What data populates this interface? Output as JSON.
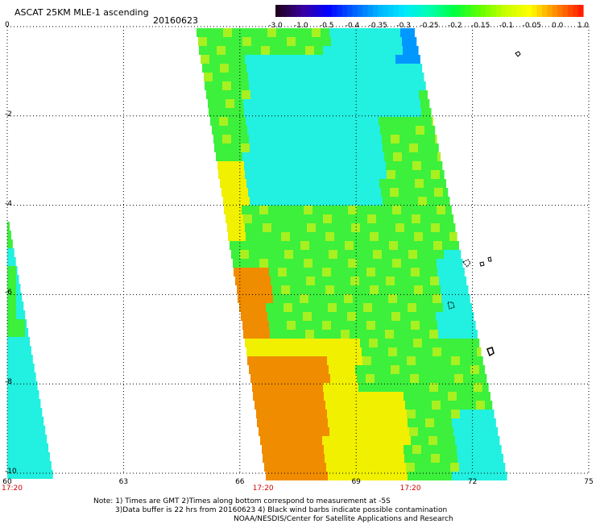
{
  "header": {
    "title": "ASCAT 25KM MLE-1 ascending",
    "date": "20160623"
  },
  "colorbar": {
    "labels": [
      "-3.0",
      "-1.0",
      "-0.5",
      "-0.4",
      "-0.35",
      "-0.3",
      "-0.25",
      "-0.2",
      "-0.15",
      "-0.1",
      "-0.05",
      "0.0",
      "1.0"
    ],
    "colors": [
      "#200020",
      "#3a00a0",
      "#0000ff",
      "#0060ff",
      "#00b4ff",
      "#00e8ff",
      "#00ffb0",
      "#00ff40",
      "#60ff00",
      "#c8ff00",
      "#ffff00",
      "#ff8c00",
      "#ff2000"
    ]
  },
  "map": {
    "x_axis": {
      "min": 60,
      "max": 75,
      "ticks": [
        "60",
        "63",
        "66",
        "69",
        "72",
        "75"
      ]
    },
    "y_axis": {
      "min": -10,
      "max": 0,
      "ticks": [
        "0",
        "-2",
        "-4",
        "-6",
        "-8",
        "-10"
      ]
    },
    "pass_times": [
      {
        "lon": 60,
        "label": "17:20"
      },
      {
        "lon": 66.6,
        "label": "17:20"
      },
      {
        "lon": 70.4,
        "label": "17:20"
      }
    ],
    "swath_colors": {
      "cyan": "#22f0e0",
      "green": "#3cf03c",
      "lime": "#a8f020",
      "yellow": "#f0f000",
      "orange": "#f08c00",
      "blue": "#0098ff"
    }
  },
  "footer": {
    "line1": "Note: 1) Times are GMT 2)Times along bottom correspond to measurement at -5S",
    "line2": "3)Data buffer is 22 hrs from 20160623 4) Black wind barbs indicate possible contamination",
    "line3": "NOAA/NESDIS/Center for Satellite Applications and Research"
  }
}
